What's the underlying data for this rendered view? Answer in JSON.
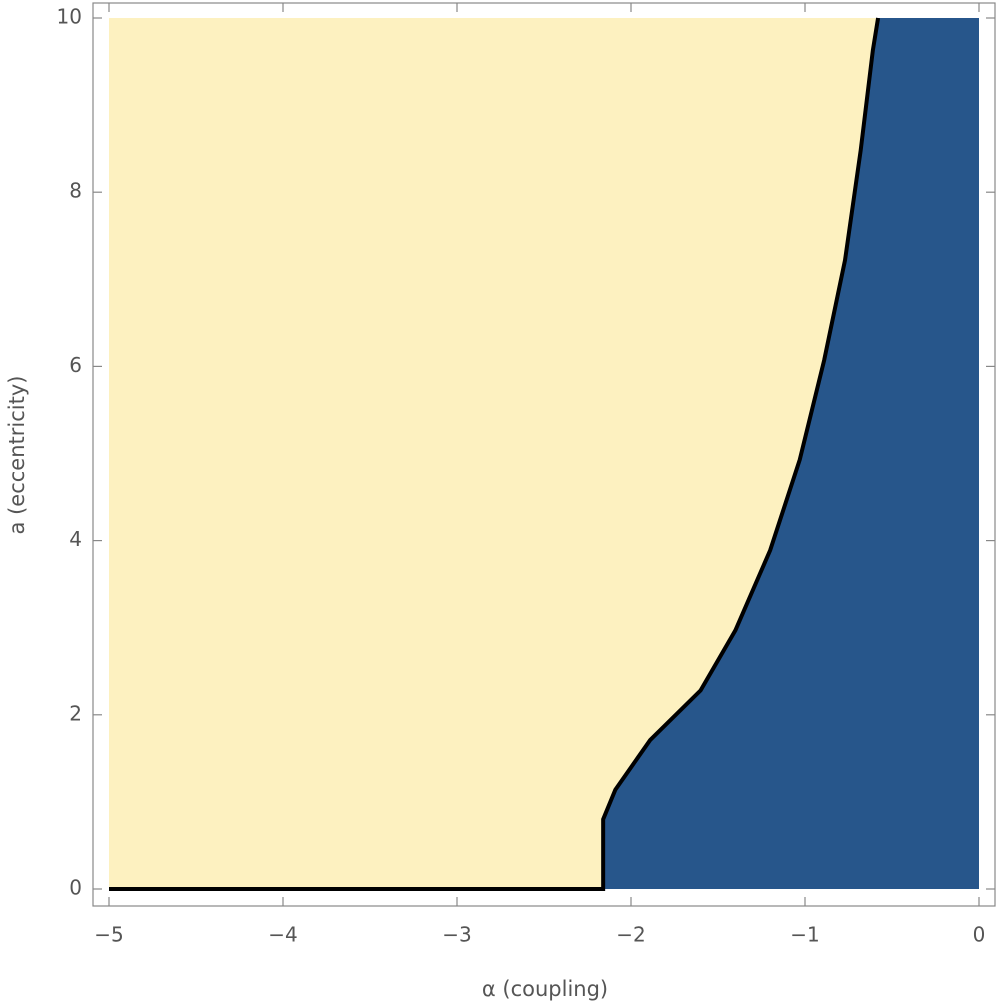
{
  "chart_data": {
    "type": "region",
    "xlabel": "α  (coupling)",
    "ylabel": "a  (eccentricity)",
    "xlim": [
      -5,
      0
    ],
    "ylim": [
      0,
      10
    ],
    "xticks": [
      {
        "value": -5,
        "label": "−5"
      },
      {
        "value": -4,
        "label": "−4"
      },
      {
        "value": -3,
        "label": "−3"
      },
      {
        "value": -2,
        "label": "−2"
      },
      {
        "value": -1,
        "label": "−1"
      },
      0
    ],
    "yticks": [
      0,
      2,
      4,
      6,
      8,
      10
    ],
    "background_color": "#fdf1c0",
    "region_color": "#27568b",
    "boundary_color": "#000000",
    "boundary": {
      "x": [
        -5,
        -2.16,
        -2.16,
        -2.09,
        -1.89,
        -1.6,
        -1.4,
        -1.2,
        -1.03,
        -0.89,
        -0.77,
        -0.68,
        -0.61,
        -0.58
      ],
      "y": [
        0,
        0,
        0.8,
        1.14,
        1.71,
        2.28,
        2.97,
        3.89,
        4.93,
        6.07,
        7.22,
        8.48,
        9.63,
        10
      ]
    }
  }
}
